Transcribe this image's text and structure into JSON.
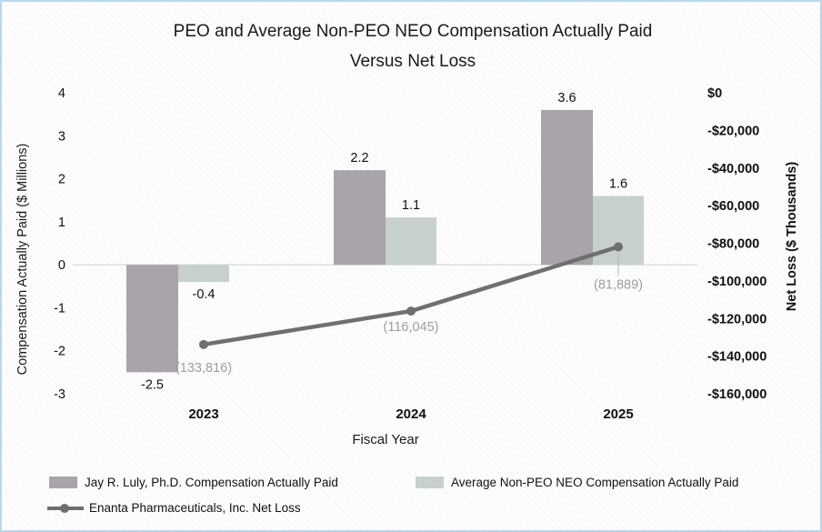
{
  "title": {
    "line1": "PEO and Average Non-PEO NEO Compensation Actually Paid",
    "line2": "Versus Net Loss"
  },
  "chart_data": {
    "type": "bar+line combo",
    "categories": [
      "2023",
      "2024",
      "2025"
    ],
    "series": [
      {
        "name": "Jay R. Luly, Ph.D. Compensation Actually Paid",
        "type": "bar",
        "axis": "left",
        "values": [
          -2.5,
          2.2,
          3.6
        ],
        "labels": [
          "-2.5",
          "2.2",
          "3.6"
        ],
        "color": "#a8a4a9"
      },
      {
        "name": "Average Non-PEO NEO Compensation Actually Paid",
        "type": "bar",
        "axis": "left",
        "values": [
          -0.4,
          1.1,
          1.6
        ],
        "labels": [
          "-0.4",
          "1.1",
          "1.6"
        ],
        "color": "#c7d0cb"
      },
      {
        "name": "Enanta Pharmaceuticals, Inc. Net Loss",
        "type": "line",
        "axis": "right",
        "values": [
          -133816,
          -116045,
          -81889
        ],
        "labels": [
          "(133,816)",
          "(116,045)",
          "(81,889)"
        ],
        "color": "#6f6f6f"
      }
    ],
    "x_axis": {
      "label": "Fiscal Year",
      "ticks": [
        "2023",
        "2024",
        "2025"
      ]
    },
    "left_axis": {
      "label": "Compensation Actually Paid ($ Millions)",
      "ticks": [
        "4",
        "3",
        "2",
        "1",
        "0",
        "-1",
        "-2",
        "-3"
      ],
      "range": [
        -3,
        4
      ]
    },
    "right_axis": {
      "label": "Net Loss ($ Thousands)",
      "ticks": [
        "$0",
        "-$20,000",
        "-$40,000",
        "-$60,000",
        "-$80,000",
        "-$100,000",
        "-$120,000",
        "-$140,000",
        "-$160,000"
      ],
      "range": [
        -160000,
        0
      ]
    },
    "grid": false,
    "legend_position": "bottom-left",
    "style": {
      "zero_line_color": "#d9d9d9",
      "leader_line_color": "#b5b5b5",
      "line_label_color": "#9e9e9e"
    }
  }
}
